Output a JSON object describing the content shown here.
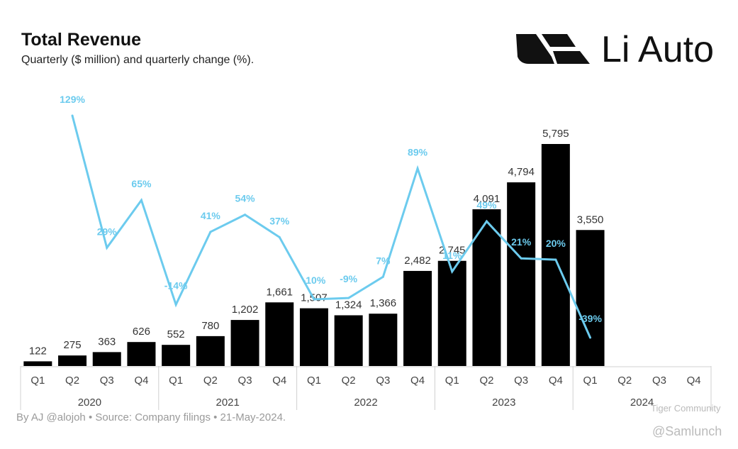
{
  "header": {
    "title": "Total Revenue",
    "subtitle": "Quarterly ($ million) and quarterly change (%).",
    "brand": "Li Auto"
  },
  "footer": {
    "credit": "By AJ @alojoh • Source: Company filings • 21-May-2024."
  },
  "watermark": {
    "line1": "Tiger Community",
    "line2": "@Samlunch"
  },
  "colors": {
    "bar": "#000000",
    "line": "#6ccbee",
    "bar_label": "#333333",
    "axis": "#d0d0d0"
  },
  "chart_data": {
    "type": "bar",
    "title": "Total Revenue",
    "subtitle": "Quarterly ($ million) and quarterly change (%).",
    "categories": [
      "Q1",
      "Q2",
      "Q3",
      "Q4",
      "Q1",
      "Q2",
      "Q3",
      "Q4",
      "Q1",
      "Q2",
      "Q3",
      "Q4",
      "Q1",
      "Q2",
      "Q3",
      "Q4",
      "Q1",
      "Q2",
      "Q3",
      "Q4"
    ],
    "years": [
      {
        "label": "2020",
        "span": 4
      },
      {
        "label": "2021",
        "span": 4
      },
      {
        "label": "2022",
        "span": 4
      },
      {
        "label": "2023",
        "span": 4
      },
      {
        "label": "2024",
        "span": 4
      }
    ],
    "series": [
      {
        "name": "Revenue ($ million)",
        "type": "bar",
        "values": [
          122,
          275,
          363,
          626,
          552,
          780,
          1202,
          1661,
          1507,
          1324,
          1366,
          2482,
          2745,
          4091,
          4794,
          5795,
          3550,
          null,
          null,
          null
        ],
        "labels": [
          "122",
          "275",
          "363",
          "626",
          "552",
          "780",
          "1,202",
          "1,661",
          "1,507",
          "1,324",
          "1,366",
          "2,482",
          "2,745",
          "4,091",
          "4,794",
          "5,795",
          "3,550",
          "",
          "",
          ""
        ]
      },
      {
        "name": "Quarterly change (%)",
        "type": "line",
        "values": [
          null,
          129,
          29,
          65,
          -14,
          41,
          54,
          37,
          -10,
          -9,
          7,
          89,
          11,
          49,
          21,
          20,
          -39,
          null,
          null,
          null
        ],
        "labels": [
          "",
          "129%",
          "29%",
          "65%",
          "-14%",
          "41%",
          "54%",
          "37%",
          "-10%",
          "-9%",
          "7%",
          "89%",
          "11%",
          "49%",
          "21%",
          "20%",
          "-39%",
          "",
          "",
          ""
        ]
      }
    ],
    "xlabel": "",
    "ylabel": "",
    "ylim": [
      0,
      6500
    ],
    "y2lim": [
      -60,
      140
    ],
    "grid": false,
    "legend": "none"
  }
}
